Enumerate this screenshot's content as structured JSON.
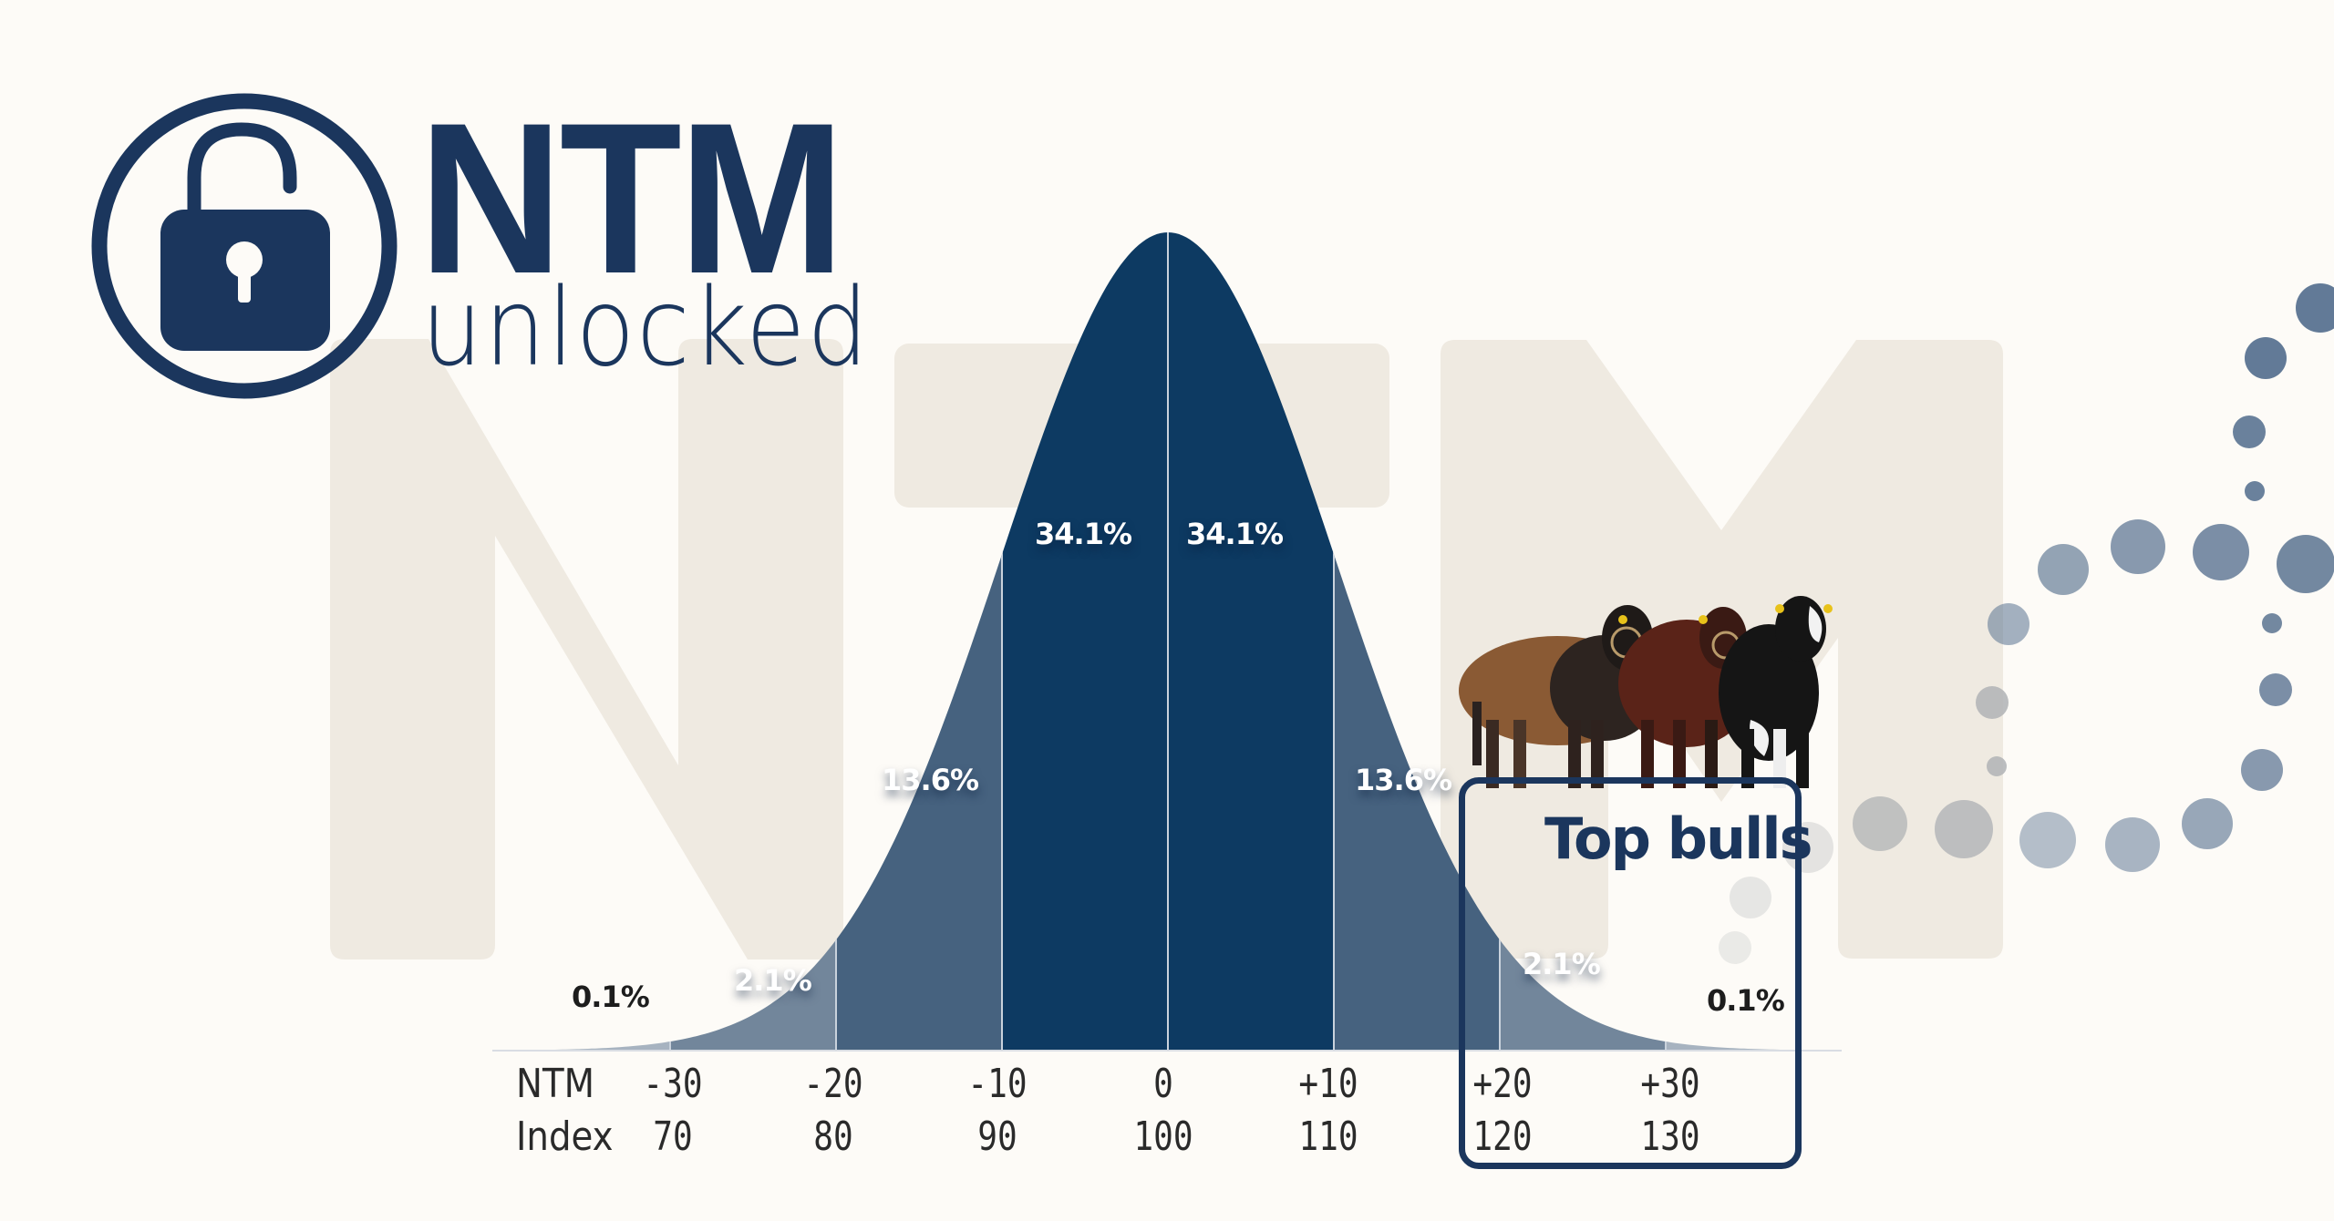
{
  "logo": {
    "title": "NTM",
    "subtitle": "unlocked",
    "icon": "unlocked-padlock-icon",
    "color": "#1b365d"
  },
  "watermark": {
    "text": "NTM",
    "color": "#efeae1"
  },
  "callout": {
    "title": "Top bulls",
    "image": "three-bulls-photo",
    "border_color": "#1b365d"
  },
  "axis": {
    "row1_label": "NTM",
    "row2_label": "Index",
    "ntm_ticks": [
      "-30",
      "-20",
      "-10",
      "0",
      "+10",
      "+20",
      "+30"
    ],
    "index_ticks": [
      "70",
      "80",
      "90",
      "100",
      "110",
      "120",
      "130"
    ]
  },
  "colors": {
    "background": "#fdfbf7",
    "band_1sd": "#0d3a62",
    "band_2sd": "#46627f",
    "band_3sd": "#72869b",
    "band_tail": "#a7b3c0",
    "dots_blue": "#5a7391",
    "dots_grey": "#b4b6b8"
  },
  "chart_data": {
    "type": "area",
    "title": "NTM unlocked",
    "subtitle": "Normal distribution of NTM / Index",
    "xlabel": "NTM / Index",
    "ylabel": "",
    "x_ticks_ntm": [
      -30,
      -20,
      -10,
      0,
      10,
      20,
      30
    ],
    "x_ticks_index": [
      70,
      80,
      90,
      100,
      110,
      120,
      130
    ],
    "mean_ntm": 0,
    "sd_ntm": 10,
    "mean_index": 100,
    "sd_index": 10,
    "segments": [
      {
        "range": "< -30",
        "percent": 0.1,
        "label": "0.1%"
      },
      {
        "range": "-30 to -20",
        "percent": 2.1,
        "label": "2.1%"
      },
      {
        "range": "-20 to -10",
        "percent": 13.6,
        "label": "13.6%"
      },
      {
        "range": "-10 to 0",
        "percent": 34.1,
        "label": "34.1%"
      },
      {
        "range": "0 to +10",
        "percent": 34.1,
        "label": "34.1%"
      },
      {
        "range": "+10 to +20",
        "percent": 13.6,
        "label": "13.6%"
      },
      {
        "range": "+20 to +30",
        "percent": 2.1,
        "label": "2.1%"
      },
      {
        "range": "> +30",
        "percent": 0.1,
        "label": "0.1%"
      }
    ],
    "annotations": [
      {
        "text": "Top bulls",
        "range": "+20 and above"
      }
    ],
    "grid": false,
    "legend": "none"
  }
}
